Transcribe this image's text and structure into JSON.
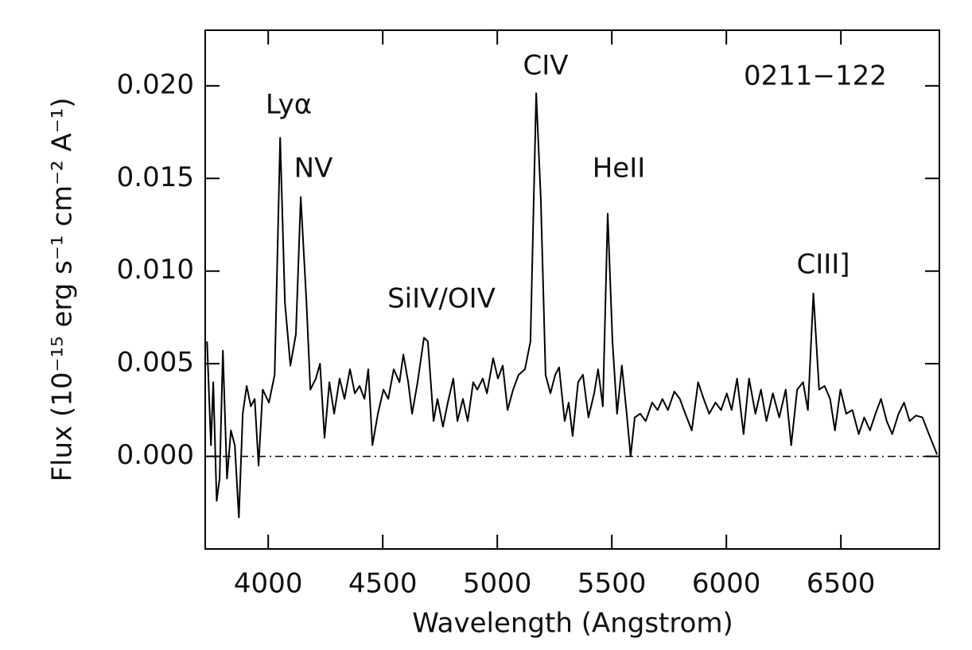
{
  "chart_data": {
    "type": "line",
    "xlabel": "Wavelength (Angstrom)",
    "ylabel": "Flux (10⁻¹⁵ erg s⁻¹ cm⁻² A⁻¹)",
    "annotations": [
      "Lyα",
      "NV",
      "SiIV/OIV",
      "CIV",
      "HeII",
      "CIII]",
      "0211−122"
    ],
    "color": "#000000",
    "hline": 0,
    "xlim": [
      3725,
      6930
    ],
    "ylim": [
      -0.005,
      0.023
    ],
    "xticks": [
      4000,
      4500,
      5000,
      5500,
      6000,
      6500
    ],
    "yticks": [
      {
        "value": 0,
        "label": "0.000"
      },
      {
        "value": 0.005,
        "label": "0.005"
      },
      {
        "value": 0.01,
        "label": "0.010"
      },
      {
        "value": 0.015,
        "label": "0.015"
      },
      {
        "value": 0.02,
        "label": "0.020"
      }
    ],
    "x": [
      3733,
      3750,
      3760,
      3775,
      3788,
      3802,
      3820,
      3837,
      3854,
      3872,
      3889,
      3906,
      3924,
      3941,
      3958,
      3976,
      4003,
      4028,
      4052,
      4073,
      4097,
      4121,
      4142,
      4167,
      4184,
      4208,
      4226,
      4246,
      4267,
      4288,
      4312,
      4333,
      4357,
      4378,
      4399,
      4420,
      4437,
      4455,
      4479,
      4503,
      4524,
      4548,
      4573,
      4590,
      4611,
      4628,
      4652,
      4680,
      4697,
      4722,
      4739,
      4763,
      4784,
      4808,
      4826,
      4850,
      4871,
      4895,
      4913,
      4937,
      4955,
      4982,
      5003,
      5024,
      5045,
      5069,
      5093,
      5121,
      5145,
      5170,
      5190,
      5211,
      5232,
      5253,
      5270,
      5294,
      5312,
      5329,
      5353,
      5374,
      5398,
      5423,
      5440,
      5461,
      5482,
      5503,
      5523,
      5544,
      5565,
      5582,
      5600,
      5624,
      5648,
      5676,
      5700,
      5721,
      5745,
      5773,
      5797,
      5821,
      5849,
      5877,
      5901,
      5925,
      5953,
      5977,
      6002,
      6023,
      6047,
      6075,
      6099,
      6127,
      6151,
      6175,
      6203,
      6231,
      6259,
      6283,
      6309,
      6335,
      6356,
      6380,
      6405,
      6429,
      6453,
      6474,
      6498,
      6523,
      6550,
      6578,
      6602,
      6627,
      6651,
      6675,
      6700,
      6724,
      6752,
      6776,
      6800,
      6828,
      6856,
      6884,
      6920
    ],
    "values": [
      0.0062,
      0.0006,
      0.004,
      -0.0024,
      -0.0012,
      0.0057,
      -0.0012,
      0.0014,
      0.0006,
      -0.0033,
      0.0023,
      0.0038,
      0.0027,
      0.0031,
      -0.0005,
      0.0036,
      0.0029,
      0.0044,
      0.0172,
      0.0083,
      0.0049,
      0.0066,
      0.014,
      0.0083,
      0.0036,
      0.0042,
      0.005,
      0.001,
      0.004,
      0.0023,
      0.0042,
      0.0031,
      0.0047,
      0.0034,
      0.0038,
      0.0031,
      0.0047,
      0.0006,
      0.0023,
      0.0036,
      0.0031,
      0.0047,
      0.004,
      0.0055,
      0.004,
      0.0023,
      0.004,
      0.0064,
      0.0062,
      0.0019,
      0.0031,
      0.0016,
      0.0029,
      0.0042,
      0.0019,
      0.0031,
      0.0019,
      0.004,
      0.0036,
      0.0042,
      0.0034,
      0.0053,
      0.0042,
      0.0049,
      0.0025,
      0.0036,
      0.0044,
      0.0047,
      0.0062,
      0.0196,
      0.0139,
      0.0044,
      0.0034,
      0.0044,
      0.0048,
      0.0019,
      0.0029,
      0.0011,
      0.004,
      0.0044,
      0.0021,
      0.0034,
      0.0047,
      0.0027,
      0.0131,
      0.0062,
      0.0023,
      0.0049,
      0.0023,
      0.0,
      0.0021,
      0.0023,
      0.0019,
      0.0029,
      0.0025,
      0.0031,
      0.0025,
      0.0035,
      0.0031,
      0.0023,
      0.0014,
      0.004,
      0.0031,
      0.0023,
      0.0029,
      0.0025,
      0.0034,
      0.0025,
      0.0042,
      0.0012,
      0.0042,
      0.0023,
      0.0036,
      0.0019,
      0.0034,
      0.0021,
      0.0036,
      0.0006,
      0.0036,
      0.004,
      0.0025,
      0.0088,
      0.0036,
      0.0038,
      0.0031,
      0.0014,
      0.0036,
      0.0023,
      0.0025,
      0.0012,
      0.0021,
      0.0014,
      0.0023,
      0.0031,
      0.0019,
      0.0012,
      0.0023,
      0.0029,
      0.0019,
      0.0022,
      0.0021,
      0.0012,
      0.0001
    ]
  }
}
